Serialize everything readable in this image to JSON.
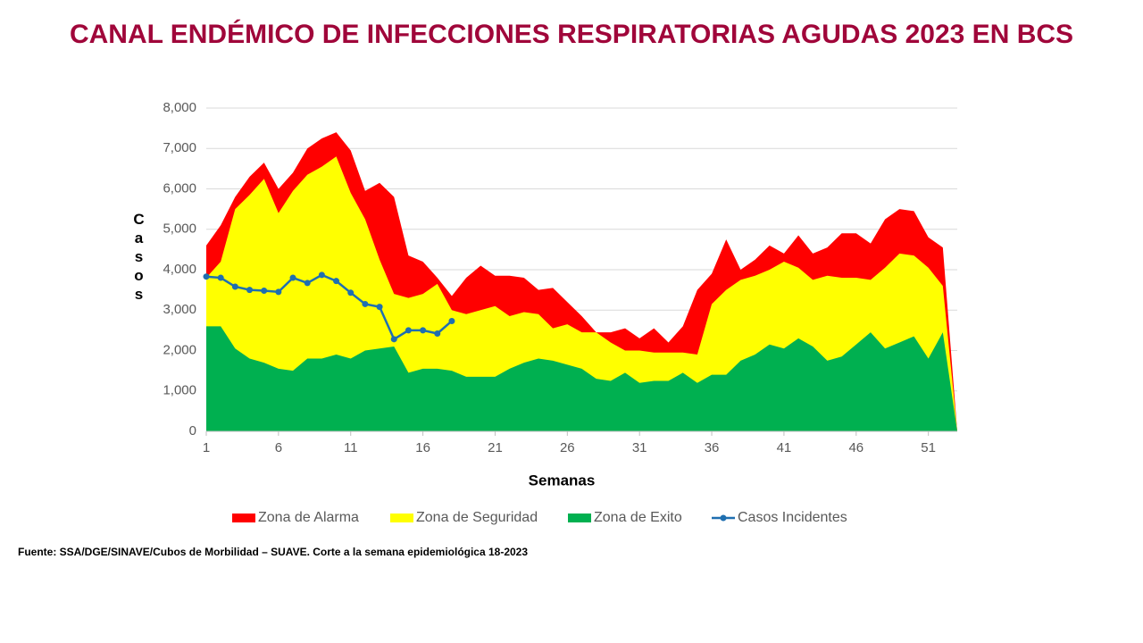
{
  "chart_data": {
    "type": "area",
    "title": "CANAL ENDÉMICO DE INFECCIONES RESPIRATORIAS AGUDAS 2023 EN BCS",
    "xlabel": "Semanas",
    "ylabel": "Casos",
    "source": "Fuente: SSA/DGE/SINAVE/Cubos  de Morbilidad – SUAVE. Corte a la semana epidemiológica 18-2023",
    "x": [
      1,
      2,
      3,
      4,
      5,
      6,
      7,
      8,
      9,
      10,
      11,
      12,
      13,
      14,
      15,
      16,
      17,
      18,
      19,
      20,
      21,
      22,
      23,
      24,
      25,
      26,
      27,
      28,
      29,
      30,
      31,
      32,
      33,
      34,
      35,
      36,
      37,
      38,
      39,
      40,
      41,
      42,
      43,
      44,
      45,
      46,
      47,
      48,
      49,
      50,
      51,
      52,
      53
    ],
    "series": [
      {
        "name": "Zona de Alarma",
        "color": "#ff0000",
        "values": [
          4600,
          5100,
          5800,
          6300,
          6650,
          6000,
          6400,
          7000,
          7250,
          7400,
          6950,
          5950,
          6150,
          5800,
          4350,
          4200,
          3800,
          3350,
          3800,
          4100,
          3850,
          3850,
          3800,
          3500,
          3550,
          3200,
          2850,
          2450,
          2450,
          2550,
          2300,
          2550,
          2200,
          2600,
          3500,
          3900,
          4750,
          4000,
          4250,
          4600,
          4400,
          4850,
          4400,
          4550,
          4900,
          4900,
          4650,
          5250,
          5500,
          5450,
          4800,
          4550,
          0
        ]
      },
      {
        "name": "Zona de Seguridad",
        "color": "#ffff00",
        "values": [
          3800,
          4200,
          5500,
          5850,
          6250,
          5400,
          5950,
          6350,
          6550,
          6800,
          5900,
          5250,
          4250,
          3400,
          3300,
          3400,
          3650,
          3000,
          2900,
          3000,
          3100,
          2850,
          2950,
          2900,
          2550,
          2650,
          2450,
          2450,
          2200,
          2000,
          2000,
          1950,
          1950,
          1950,
          1900,
          3150,
          3500,
          3750,
          3850,
          4000,
          4200,
          4050,
          3750,
          3850,
          3800,
          3800,
          3750,
          4050,
          4400,
          4350,
          4050,
          3600,
          0
        ]
      },
      {
        "name": "Zona de Exito",
        "color": "#00b050",
        "values": [
          2600,
          2600,
          2050,
          1800,
          1700,
          1550,
          1500,
          1800,
          1800,
          1900,
          1800,
          2000,
          2050,
          2100,
          1450,
          1550,
          1550,
          1500,
          1350,
          1350,
          1350,
          1550,
          1700,
          1800,
          1750,
          1650,
          1550,
          1300,
          1250,
          1450,
          1200,
          1250,
          1250,
          1450,
          1200,
          1400,
          1400,
          1750,
          1900,
          2150,
          2050,
          2300,
          2100,
          1750,
          1850,
          2150,
          2450,
          2050,
          2200,
          2350,
          1800,
          2450,
          0
        ]
      },
      {
        "name": "Casos Incidentes",
        "color": "#1f6fb0",
        "type": "line",
        "values": [
          3830,
          3800,
          3580,
          3500,
          3480,
          3450,
          3800,
          3670,
          3870,
          3720,
          3430,
          3150,
          3080,
          2280,
          2500,
          2500,
          2420,
          2730,
          null,
          null,
          null,
          null,
          null,
          null,
          null,
          null,
          null,
          null,
          null,
          null,
          null,
          null,
          null,
          null,
          null,
          null,
          null,
          null,
          null,
          null,
          null,
          null,
          null,
          null,
          null,
          null,
          null,
          null,
          null,
          null,
          null,
          null,
          null
        ]
      }
    ],
    "xlim": [
      1,
      53
    ],
    "xticks": [
      1,
      6,
      11,
      16,
      21,
      26,
      31,
      36,
      41,
      46,
      51
    ],
    "ylim": [
      0,
      8000
    ],
    "yticks": [
      0,
      {
        "value": 1000,
        "label": "1,000"
      },
      {
        "value": 2000,
        "label": "2,000"
      },
      {
        "value": 3000,
        "label": "3,000"
      },
      {
        "value": 4000,
        "label": "4,000"
      },
      {
        "value": 5000,
        "label": "5,000"
      },
      {
        "value": 6000,
        "label": "6,000"
      },
      {
        "value": 7000,
        "label": "7,000"
      },
      {
        "value": 8000,
        "label": "8,000"
      }
    ],
    "grid": true,
    "legend": "bottom"
  }
}
